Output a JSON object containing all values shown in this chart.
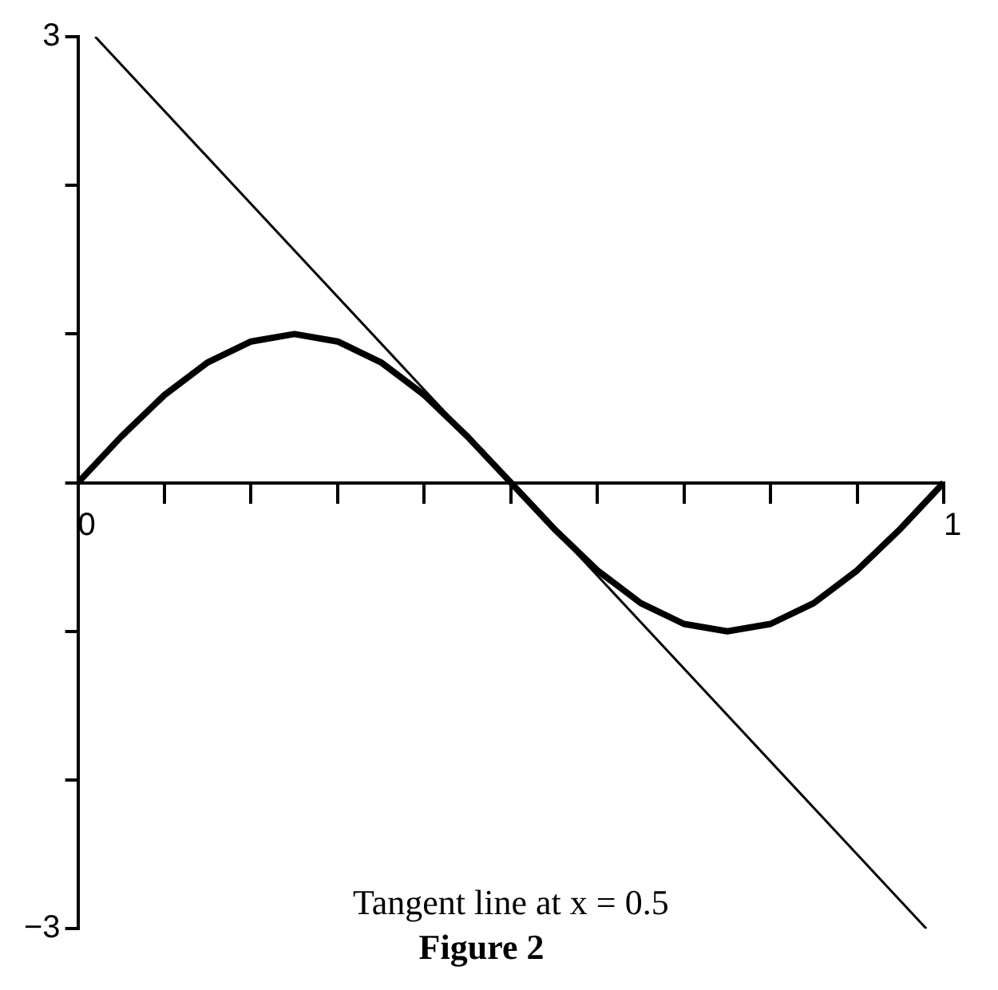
{
  "chart_data": {
    "type": "line",
    "title": "Figure 2",
    "annotations": [
      "Tangent line at x = 0.5"
    ],
    "xlim": [
      0,
      1
    ],
    "ylim": [
      -3,
      3
    ],
    "xticks": [
      0,
      {
        "value": 0.1,
        "label": null
      },
      {
        "value": 0.2,
        "label": null
      },
      {
        "value": 0.3,
        "label": null
      },
      {
        "value": 0.4,
        "label": null
      },
      {
        "value": 0.5,
        "label": null
      },
      {
        "value": 0.6,
        "label": null
      },
      {
        "value": 0.7,
        "label": null
      },
      {
        "value": 0.8,
        "label": null
      },
      {
        "value": 0.9,
        "label": null
      },
      1
    ],
    "yticks": [
      -3,
      {
        "value": -2,
        "label": null
      },
      {
        "value": -1,
        "label": null
      },
      {
        "value": 0,
        "label": null
      },
      {
        "value": 1,
        "label": null
      },
      {
        "value": 2,
        "label": null
      },
      3
    ],
    "grid": false,
    "legend": false,
    "marker": "none",
    "line_style": "solid",
    "series": [
      {
        "color": "#000000",
        "x": [
          0,
          0.05,
          0.1,
          0.15,
          0.2,
          0.25,
          0.3,
          0.35,
          0.4,
          0.45,
          0.5,
          0.55,
          0.6,
          0.65,
          0.7,
          0.75,
          0.8,
          0.85,
          0.9,
          0.95,
          1
        ],
        "values": [
          0,
          0.31,
          0.59,
          0.81,
          0.95,
          1,
          0.95,
          0.81,
          0.59,
          0.31,
          0,
          -0.31,
          -0.59,
          -0.81,
          -0.95,
          -1,
          -0.95,
          -0.81,
          -0.59,
          -0.31,
          0
        ]
      },
      {
        "color": "#000000",
        "x": [
          0.02,
          0.98
        ],
        "values": [
          3,
          -3
        ]
      }
    ]
  }
}
